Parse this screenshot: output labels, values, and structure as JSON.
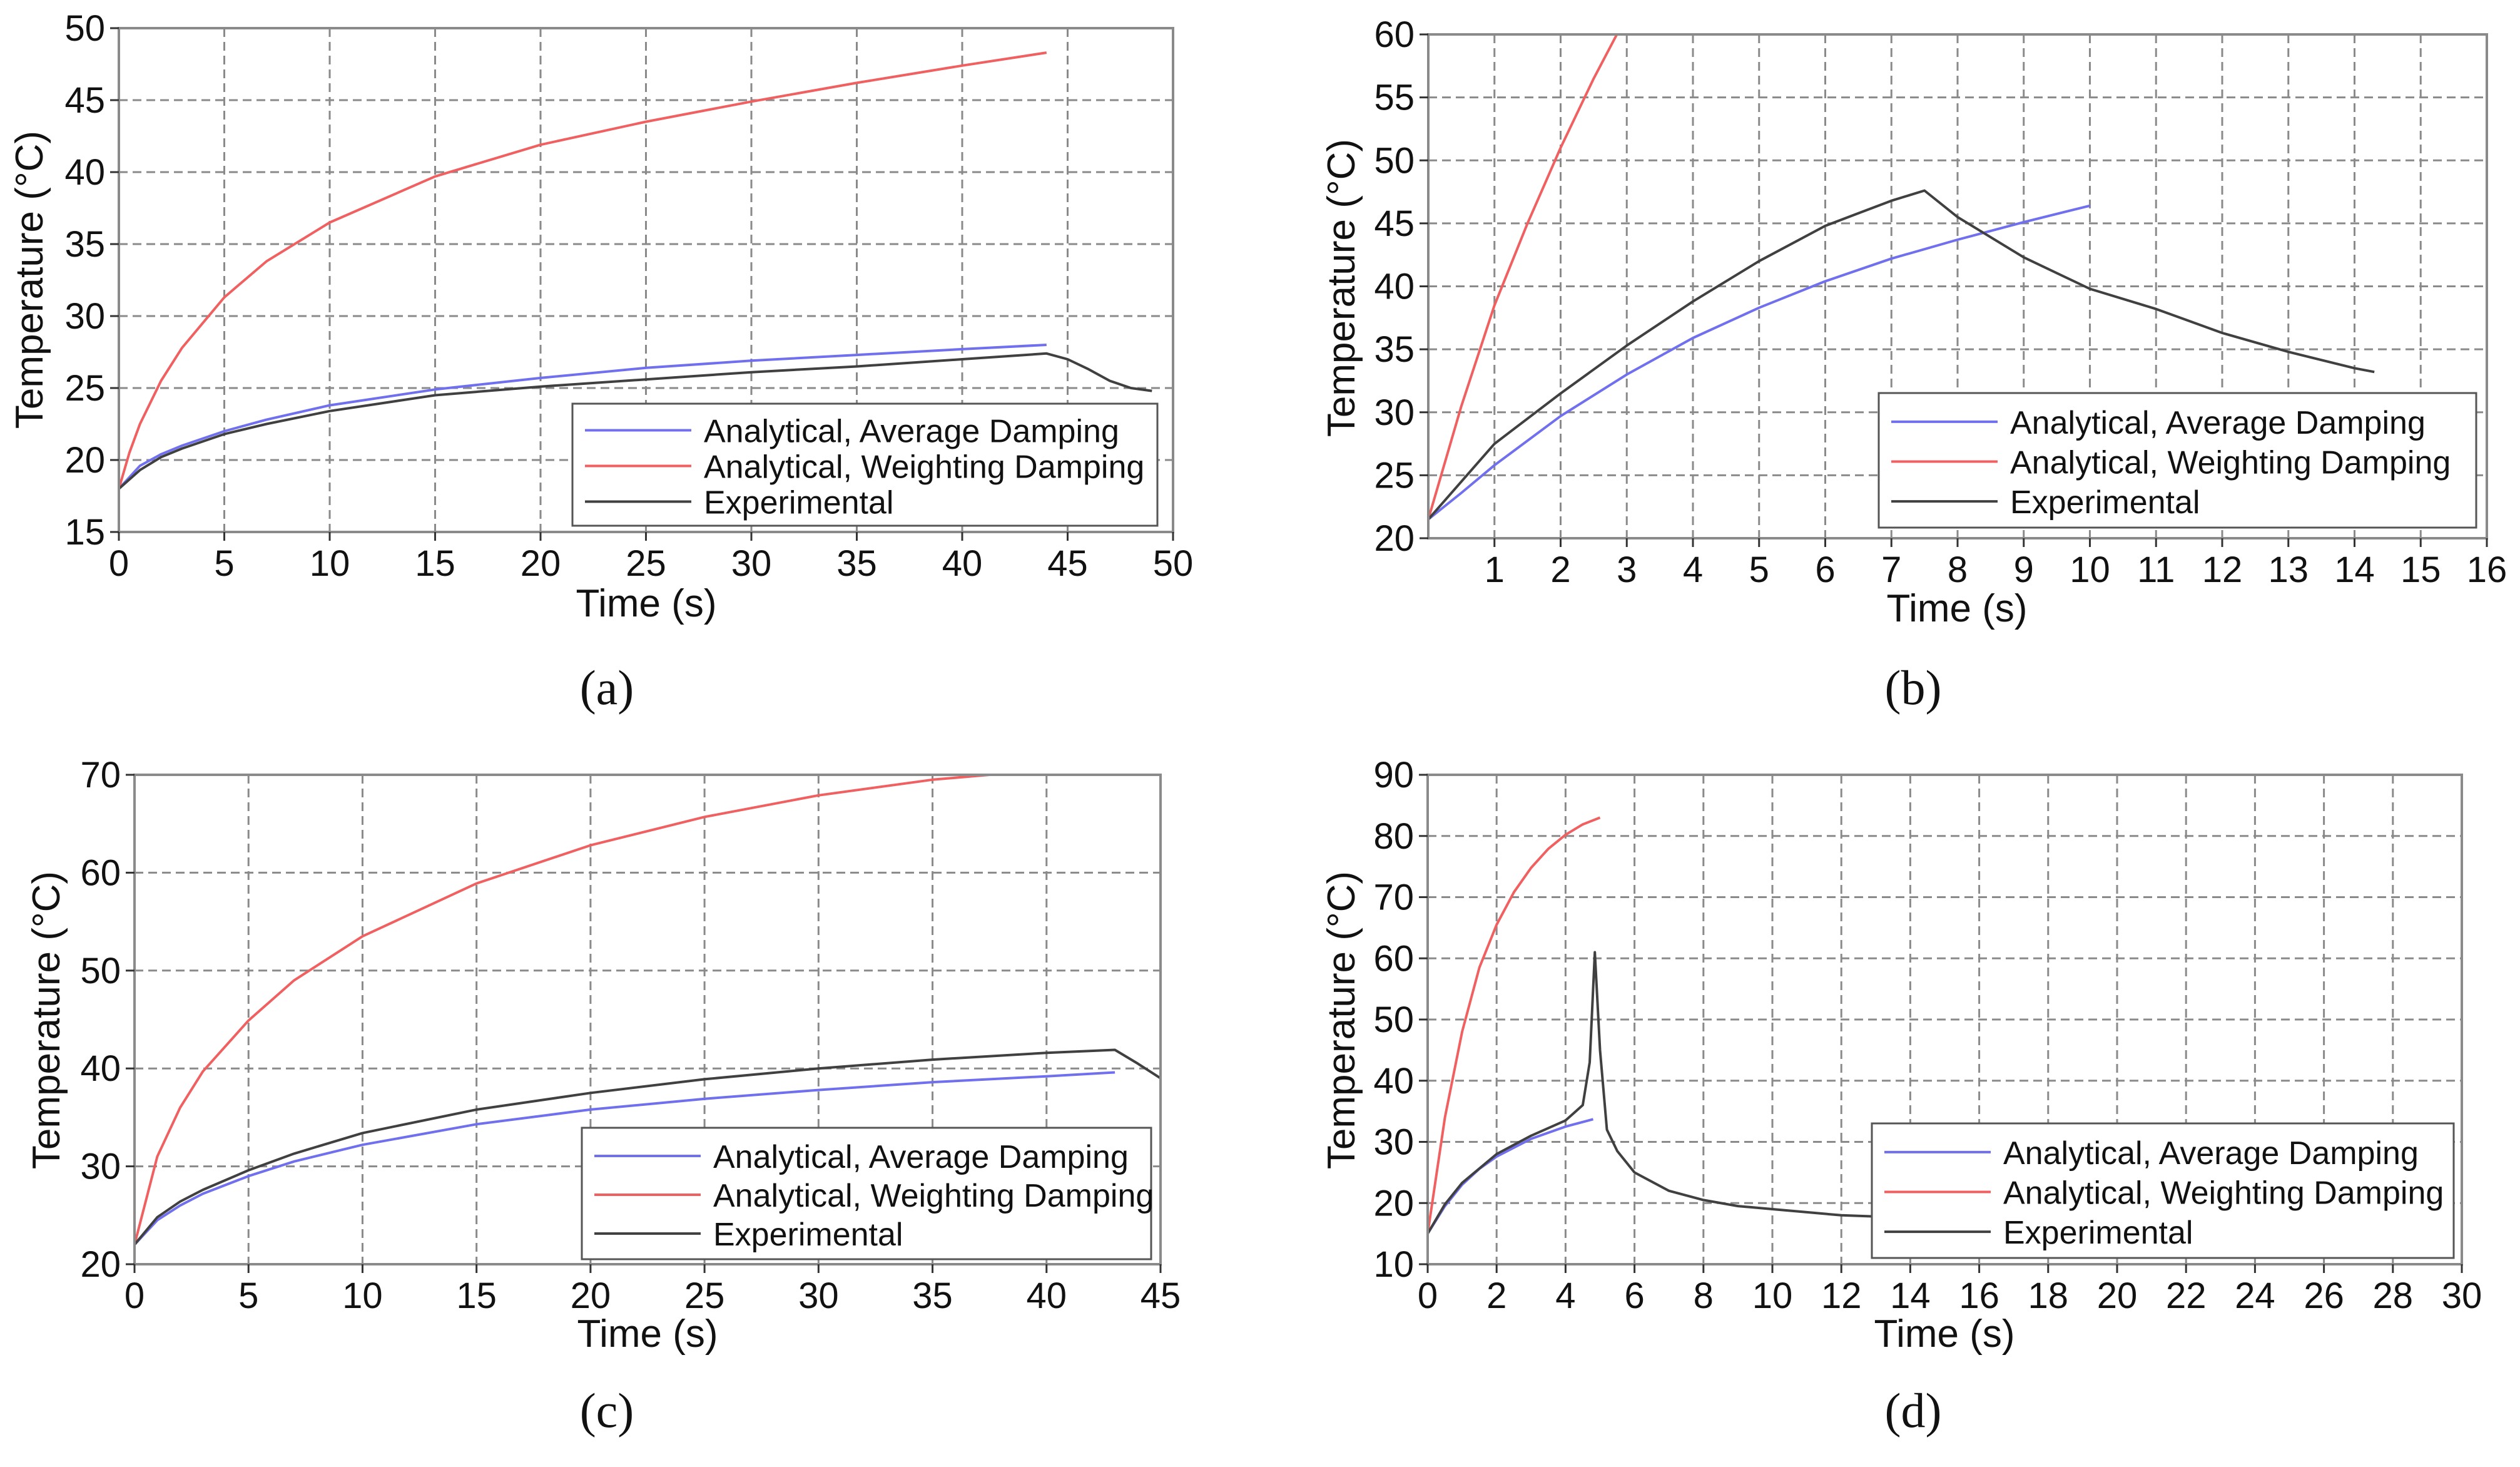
{
  "colors": {
    "average": "#7070ee",
    "weighting": "#f06060",
    "experimental": "#404040",
    "grid": "#8a8a8a"
  },
  "chart_data": [
    {
      "type": "line",
      "panel_label": "(a)",
      "xlabel": "Time (s)",
      "ylabel": "Temperature (°C)",
      "xlim": [
        0,
        50
      ],
      "ylim": [
        15,
        50
      ],
      "xticks": [
        0,
        5,
        10,
        15,
        20,
        25,
        30,
        35,
        40,
        45,
        50
      ],
      "yticks": [
        15,
        20,
        25,
        30,
        35,
        40,
        45,
        50
      ],
      "grid": true,
      "legend_position": "bottom-right",
      "series": [
        {
          "name": "Analytical, Average Damping",
          "color": "#7070ee",
          "x": [
            0,
            1,
            2,
            3,
            5,
            7,
            10,
            15,
            20,
            25,
            30,
            35,
            40,
            44
          ],
          "y": [
            18.0,
            19.6,
            20.4,
            21.0,
            22.0,
            22.8,
            23.8,
            24.9,
            25.7,
            26.4,
            26.9,
            27.3,
            27.7,
            28.0
          ]
        },
        {
          "name": "Analytical, Weighting Damping",
          "color": "#f06060",
          "x": [
            0,
            0.5,
            1,
            2,
            3,
            5,
            7,
            10,
            15,
            20,
            25,
            30,
            35,
            40,
            44
          ],
          "y": [
            18.0,
            20.5,
            22.5,
            25.5,
            27.8,
            31.3,
            33.8,
            36.5,
            39.7,
            41.9,
            43.5,
            44.9,
            46.2,
            47.4,
            48.3
          ]
        },
        {
          "name": "Experimental",
          "color": "#404040",
          "x": [
            0,
            1,
            2,
            3,
            5,
            7,
            10,
            15,
            20,
            25,
            30,
            35,
            40,
            44,
            45,
            46,
            47,
            48,
            49
          ],
          "y": [
            18.0,
            19.3,
            20.2,
            20.8,
            21.8,
            22.5,
            23.4,
            24.5,
            25.1,
            25.6,
            26.1,
            26.5,
            27.0,
            27.4,
            27.0,
            26.3,
            25.5,
            25.0,
            24.8
          ]
        }
      ]
    },
    {
      "type": "line",
      "panel_label": "(b)",
      "xlabel": "Time (s)",
      "ylabel": "Temperature (°C)",
      "xlim": [
        0,
        16
      ],
      "ylim": [
        20,
        60
      ],
      "xticks": [
        1,
        2,
        3,
        4,
        5,
        6,
        7,
        8,
        9,
        10,
        11,
        12,
        13,
        14,
        15,
        16
      ],
      "yticks": [
        20,
        25,
        30,
        35,
        40,
        45,
        50,
        55,
        60
      ],
      "grid": true,
      "legend_position": "bottom-right",
      "series": [
        {
          "name": "Analytical, Average Damping",
          "color": "#7070ee",
          "x": [
            0,
            0.5,
            1,
            2,
            3,
            4,
            5,
            6,
            7,
            8,
            9,
            10
          ],
          "y": [
            21.5,
            23.6,
            25.8,
            29.7,
            33.0,
            35.9,
            38.3,
            40.4,
            42.2,
            43.7,
            45.1,
            46.4
          ]
        },
        {
          "name": "Analytical, Weighting Damping",
          "color": "#f06060",
          "x": [
            0,
            0.5,
            1,
            1.5,
            2,
            2.5,
            2.85
          ],
          "y": [
            21.5,
            30.5,
            38.5,
            45.0,
            51.0,
            56.5,
            60.0
          ]
        },
        {
          "name": "Experimental",
          "color": "#404040",
          "x": [
            0,
            0.5,
            1,
            2,
            3,
            4,
            5,
            6,
            6.5,
            7,
            7.5,
            8,
            9,
            10,
            11,
            12,
            13,
            14,
            14.3
          ],
          "y": [
            21.5,
            24.5,
            27.5,
            31.5,
            35.3,
            38.8,
            42.0,
            44.8,
            45.8,
            46.8,
            47.6,
            45.5,
            42.3,
            39.8,
            38.2,
            36.3,
            34.8,
            33.5,
            33.2
          ]
        }
      ]
    },
    {
      "type": "line",
      "panel_label": "(c)",
      "xlabel": "Time (s)",
      "ylabel": "Temperature (°C)",
      "xlim": [
        0,
        45
      ],
      "ylim": [
        20,
        70
      ],
      "xticks": [
        0,
        5,
        10,
        15,
        20,
        25,
        30,
        35,
        40,
        45
      ],
      "yticks": [
        20,
        30,
        40,
        50,
        60,
        70
      ],
      "grid": true,
      "legend_position": "bottom-right",
      "series": [
        {
          "name": "Analytical, Average Damping",
          "color": "#7070ee",
          "x": [
            0,
            1,
            2,
            3,
            5,
            7,
            10,
            15,
            20,
            25,
            30,
            35,
            40,
            43
          ],
          "y": [
            22.0,
            24.5,
            26.0,
            27.2,
            29.0,
            30.5,
            32.2,
            34.3,
            35.8,
            36.9,
            37.8,
            38.6,
            39.2,
            39.6
          ]
        },
        {
          "name": "Analytical, Weighting Damping",
          "color": "#f06060",
          "x": [
            0,
            1,
            2,
            3,
            5,
            7,
            10,
            15,
            20,
            25,
            30,
            35,
            37.5
          ],
          "y": [
            22.0,
            31.0,
            36.0,
            39.7,
            44.9,
            49.0,
            53.5,
            58.9,
            62.8,
            65.7,
            67.9,
            69.5,
            70.0
          ]
        },
        {
          "name": "Experimental",
          "color": "#404040",
          "x": [
            0,
            1,
            2,
            3,
            5,
            7,
            10,
            15,
            20,
            25,
            30,
            35,
            40,
            43,
            44,
            45
          ],
          "y": [
            22.0,
            24.8,
            26.4,
            27.6,
            29.6,
            31.3,
            33.4,
            35.8,
            37.5,
            38.9,
            40.0,
            40.9,
            41.6,
            41.9,
            40.5,
            39.0
          ]
        }
      ]
    },
    {
      "type": "line",
      "panel_label": "(d)",
      "xlabel": "Time (s)",
      "ylabel": "Temperature (°C)",
      "xlim": [
        0,
        30
      ],
      "ylim": [
        10,
        90
      ],
      "xticks": [
        0,
        2,
        4,
        6,
        8,
        10,
        12,
        14,
        16,
        18,
        20,
        22,
        24,
        26,
        28,
        30
      ],
      "yticks": [
        10,
        20,
        30,
        40,
        50,
        60,
        70,
        80,
        90
      ],
      "grid": true,
      "legend_position": "bottom-right",
      "series": [
        {
          "name": "Analytical, Average Damping",
          "color": "#7070ee",
          "x": [
            0,
            0.5,
            1,
            1.5,
            2,
            3,
            4,
            4.8
          ],
          "y": [
            15.0,
            19.5,
            23.0,
            25.6,
            27.6,
            30.5,
            32.5,
            33.7
          ]
        },
        {
          "name": "Analytical, Weighting Damping",
          "color": "#f06060",
          "x": [
            0,
            0.5,
            1,
            1.5,
            2,
            2.5,
            3,
            3.5,
            4,
            4.5,
            5
          ],
          "y": [
            15.0,
            34.0,
            48.0,
            58.5,
            65.5,
            70.8,
            74.8,
            77.9,
            80.2,
            81.9,
            83.0
          ]
        },
        {
          "name": "Experimental",
          "color": "#404040",
          "x": [
            0,
            0.5,
            1,
            2,
            3,
            4,
            4.5,
            4.7,
            4.85,
            5.0,
            5.2,
            5.5,
            6,
            7,
            8,
            9,
            10,
            11,
            12,
            13
          ],
          "y": [
            15.0,
            19.8,
            23.3,
            28.0,
            31.0,
            33.5,
            36.0,
            43.0,
            61.0,
            45.0,
            32.0,
            28.5,
            25.0,
            22.0,
            20.5,
            19.5,
            19.0,
            18.5,
            18.0,
            17.8
          ]
        }
      ]
    }
  ]
}
